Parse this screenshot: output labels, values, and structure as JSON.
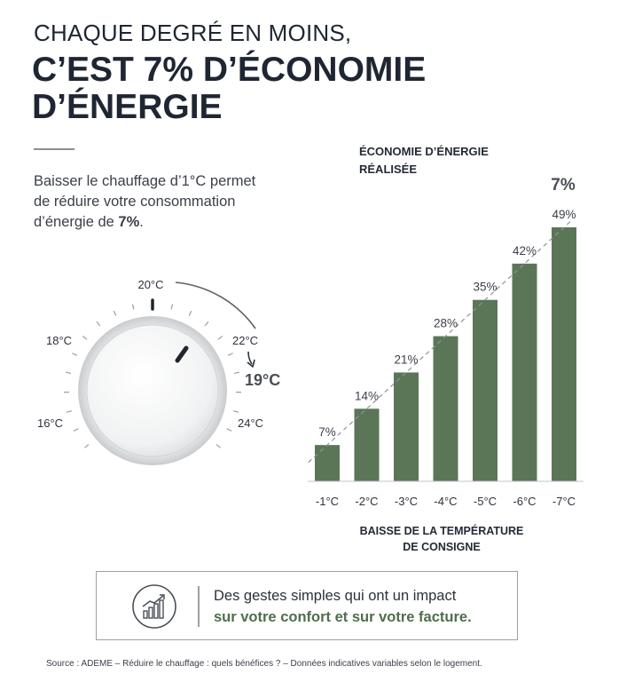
{
  "header": {
    "line1": "CHAQUE DEGRÉ EN MOINS,",
    "line2a": "C’EST 7% D’ÉCONOMIE",
    "line2b": "D’ÉNERGIE"
  },
  "intro": {
    "text": "Baisser le chauffage d’1°C permet de réduire votre consommation d’énergie de ",
    "highlight": "7%",
    "end": "."
  },
  "thermostat": {
    "scale_labels": [
      "16°C",
      "18°C",
      "20°C",
      "22°C",
      "24°C"
    ],
    "target_label": "19°C",
    "icons": {
      "knob": "thermostat-knob",
      "arrow": "arrow-down-icon"
    }
  },
  "chart_data": {
    "type": "bar",
    "title_line1": "ÉCONOMIE D’ÉNERGIE",
    "title_line2": "RÉALISÉE",
    "categories": [
      "-1°C",
      "-2°C",
      "-3°C",
      "-4°C",
      "-5°C",
      "-6°C",
      "-7°C"
    ],
    "values": [
      7,
      14,
      21,
      28,
      35,
      42,
      49
    ],
    "value_labels": [
      "7%",
      "14%",
      "21%",
      "28%",
      "35%",
      "42%",
      "49%"
    ],
    "trend_annotation": "7%",
    "xlabel_line1": "BAISSE DE LA TEMPÉRATURE",
    "xlabel_line2": "DE CONSIGNE",
    "ylim": [
      0,
      49
    ],
    "bar_color": "#5a7657",
    "trend_line": true,
    "grid": false
  },
  "callout": {
    "line1": "Des gestes simples qui ont un impact",
    "line2": "sur votre confort et sur votre facture.",
    "icon": "growth-chart-icon",
    "accent_color": "#4f6e4d"
  },
  "source": "Source : ADEME – Réduire le chauffage : quels bénéfices ? – Données indicatives variables selon le logement."
}
